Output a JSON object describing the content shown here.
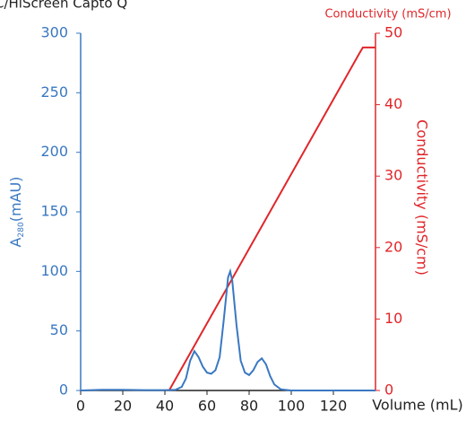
{
  "chart_data": {
    "type": "line",
    "title": "C/HiScreen Capto Q",
    "x_label": "Volume (mL)",
    "y_label": {
      "main": "A",
      "sub": "280",
      "unit": "(mAU)"
    },
    "y2_label": "Conductivity (mS/cm)",
    "y2_top_label": "Conductivity (mS/cm)",
    "xlim": [
      0,
      140
    ],
    "xticks": [
      0,
      20,
      40,
      60,
      80,
      100,
      120
    ],
    "ylim": [
      0,
      300
    ],
    "yticks": [
      0,
      50,
      100,
      150,
      200,
      250,
      300
    ],
    "y2lim": [
      0,
      50
    ],
    "y2ticks": [
      0,
      10,
      20,
      30,
      40,
      50
    ],
    "series": [
      {
        "name": "A280",
        "color": "#3a78c2",
        "x": [
          0,
          10,
          20,
          30,
          40,
          45,
          48,
          50,
          52,
          54,
          56,
          58,
          60,
          62,
          64,
          66,
          68,
          70,
          71,
          72,
          74,
          76,
          78,
          80,
          82,
          84,
          86,
          88,
          90,
          92,
          95,
          100,
          140
        ],
        "values": [
          0,
          0.5,
          0.5,
          0.3,
          0.3,
          0.5,
          3,
          10,
          25,
          33,
          28,
          20,
          15,
          14,
          17,
          28,
          60,
          95,
          100,
          92,
          55,
          25,
          15,
          13,
          17,
          24,
          27,
          22,
          12,
          5,
          1,
          0,
          0
        ]
      },
      {
        "name": "Conductivity",
        "color": "#e0262a",
        "axis": "y2",
        "x": [
          42,
          132,
          134,
          140
        ],
        "values": [
          0,
          47,
          48,
          48
        ]
      }
    ]
  }
}
